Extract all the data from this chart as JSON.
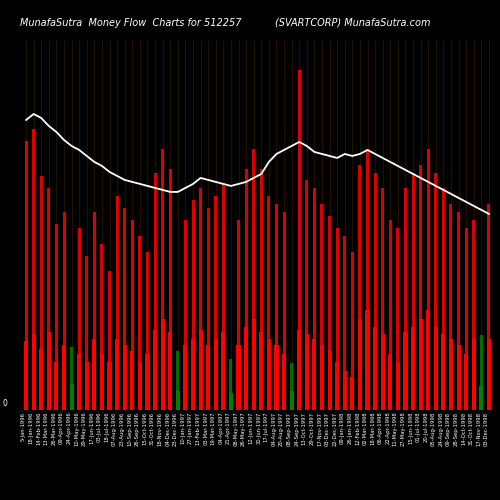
{
  "title_left": "MunafaSutra  Money Flow  Charts for 512257",
  "title_right": "(SVARTCORP) MunafaSutra.com",
  "background_color": "#000000",
  "bar_colors": [
    "red",
    "red",
    "red",
    "red",
    "red",
    "red",
    "green",
    "red",
    "red",
    "red",
    "red",
    "red",
    "red",
    "red",
    "red",
    "red",
    "red",
    "red",
    "red",
    "red",
    "green",
    "red",
    "red",
    "red",
    "red",
    "red",
    "red",
    "green",
    "red",
    "red",
    "red",
    "red",
    "red",
    "red",
    "red",
    "green",
    "red",
    "red",
    "red",
    "red",
    "red",
    "red",
    "red",
    "red",
    "red",
    "red",
    "red",
    "red",
    "red",
    "red",
    "red",
    "red",
    "red",
    "red",
    "red",
    "red",
    "red",
    "red",
    "red",
    "red",
    "green",
    "red"
  ],
  "upper_heights": [
    340,
    355,
    295,
    280,
    235,
    250,
    80,
    230,
    195,
    250,
    210,
    175,
    270,
    255,
    240,
    220,
    200,
    300,
    330,
    305,
    75,
    240,
    265,
    280,
    255,
    270,
    285,
    65,
    240,
    305,
    330,
    305,
    270,
    260,
    250,
    60,
    430,
    290,
    280,
    260,
    245,
    230,
    220,
    200,
    310,
    330,
    300,
    280,
    240,
    230,
    280,
    300,
    310,
    330,
    300,
    280,
    260,
    250,
    230,
    240,
    95,
    260
  ],
  "lower_heights": [
    80,
    88,
    70,
    90,
    55,
    75,
    30,
    65,
    55,
    82,
    65,
    55,
    82,
    75,
    68,
    55,
    65,
    92,
    105,
    90,
    22,
    75,
    82,
    92,
    75,
    82,
    90,
    20,
    75,
    95,
    105,
    90,
    82,
    75,
    65,
    22,
    92,
    88,
    82,
    75,
    68,
    55,
    45,
    38,
    105,
    115,
    96,
    88,
    65,
    55,
    90,
    96,
    105,
    115,
    96,
    88,
    82,
    75,
    65,
    82,
    28,
    82
  ],
  "line_values": [
    0.79,
    0.82,
    0.8,
    0.76,
    0.73,
    0.69,
    0.66,
    0.64,
    0.61,
    0.58,
    0.56,
    0.53,
    0.51,
    0.49,
    0.48,
    0.47,
    0.46,
    0.45,
    0.44,
    0.43,
    0.43,
    0.45,
    0.47,
    0.5,
    0.49,
    0.48,
    0.47,
    0.46,
    0.47,
    0.48,
    0.5,
    0.52,
    0.58,
    0.62,
    0.64,
    0.66,
    0.68,
    0.66,
    0.63,
    0.62,
    0.61,
    0.6,
    0.62,
    0.61,
    0.62,
    0.64,
    0.62,
    0.6,
    0.58,
    0.56,
    0.54,
    0.52,
    0.5,
    0.48,
    0.46,
    0.44,
    0.42,
    0.4,
    0.38,
    0.36,
    0.34,
    0.32
  ],
  "n_bars": 62,
  "text_color": "#ffffff",
  "line_color": "#ffffff",
  "title_fontsize": 7,
  "axis_label_fontsize": 3.8,
  "date_labels": [
    "5-Jan-1996",
    "18-Jan-1996",
    "14-Feb-1996",
    "13-Mar-1996",
    "26-Mar-1996",
    "09-Apr-1996",
    "24-Apr-1996",
    "10-May-1996",
    "29-May-1996",
    "17-Jun-1996",
    "03-Jul-1996",
    "18-Jul-1996",
    "07-Aug-1996",
    "23-Aug-1996",
    "10-Sep-1996",
    "26-Sep-1996",
    "15-Oct-1996",
    "31-Oct-1996",
    "18-Nov-1996",
    "04-Dec-1996",
    "23-Dec-1996",
    "10-Jan-1997",
    "27-Jan-1997",
    "13-Feb-1997",
    "03-Mar-1997",
    "19-Mar-1997",
    "04-Apr-1997",
    "21-Apr-1997",
    "08-May-1997",
    "26-May-1997",
    "12-Jun-1997",
    "30-Jun-1997",
    "17-Jul-1997",
    "04-Aug-1997",
    "20-Aug-1997",
    "08-Sep-1997",
    "24-Sep-1997",
    "13-Oct-1997",
    "29-Oct-1997",
    "17-Nov-1997",
    "03-Dec-1997",
    "22-Dec-1997",
    "09-Jan-1998",
    "26-Jan-1998",
    "12-Feb-1998",
    "02-Mar-1998",
    "18-Mar-1998",
    "06-Apr-1998",
    "22-Apr-1998",
    "11-May-1998",
    "27-May-1998",
    "15-Jun-1998",
    "01-Jul-1998",
    "20-Jul-1998",
    "05-Aug-1998",
    "24-Aug-1998",
    "09-Sep-1998",
    "28-Sep-1998",
    "14-Oct-1998",
    "31-Oct-1998",
    "17-Nov-1998",
    "03-Dec-1998"
  ]
}
